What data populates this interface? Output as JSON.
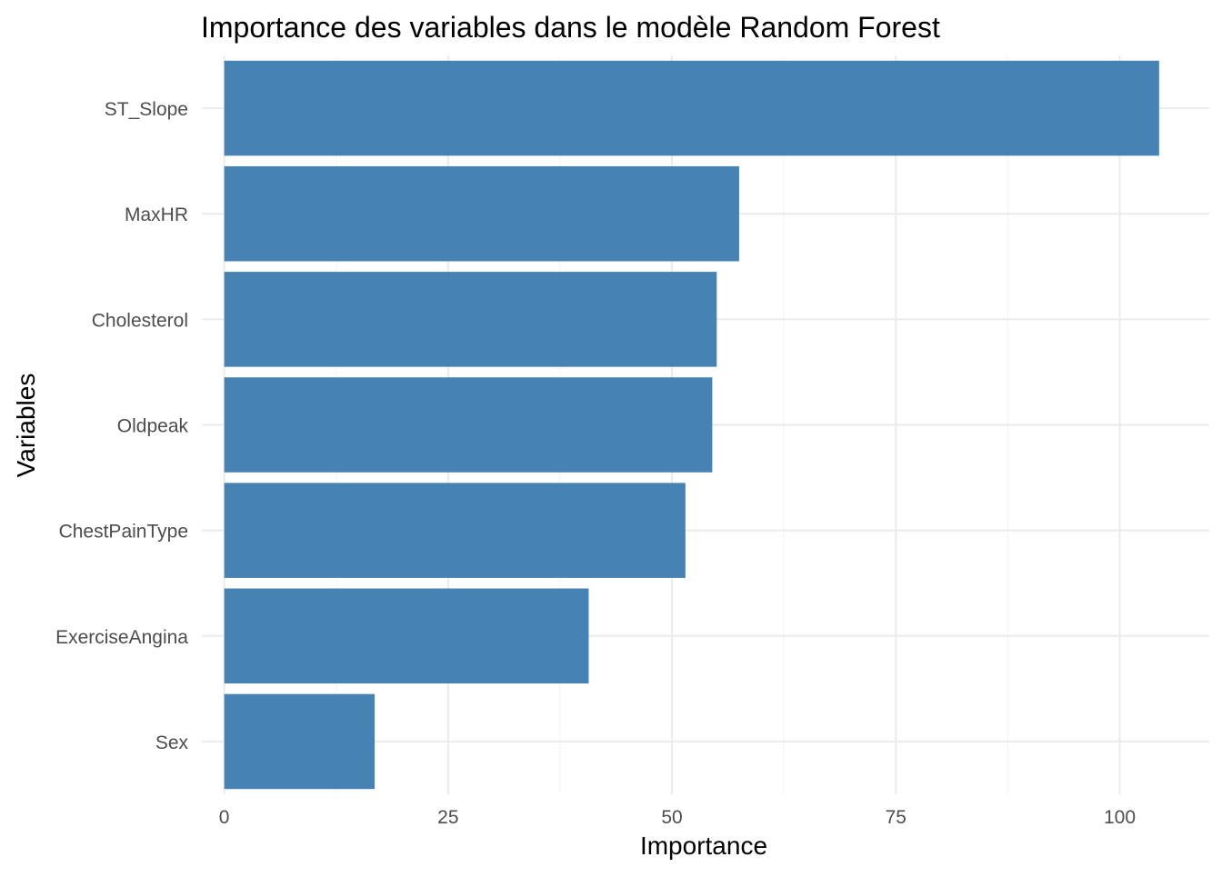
{
  "chart_data": {
    "type": "bar",
    "orientation": "horizontal",
    "title": "Importance des variables dans le modèle Random Forest",
    "xlabel": "Importance",
    "ylabel": "Variables",
    "categories": [
      "ST_Slope",
      "MaxHR",
      "Cholesterol",
      "Oldpeak",
      "ChestPainType",
      "ExerciseAngina",
      "Sex"
    ],
    "values": [
      104.4,
      57.5,
      55.0,
      54.5,
      51.5,
      40.7,
      16.8
    ],
    "xlim": [
      -2.5,
      110
    ],
    "x_ticks": [
      0,
      25,
      50,
      75,
      100
    ],
    "x_minor_ticks": [
      12.5,
      37.5,
      62.5,
      87.5
    ],
    "grid": true,
    "legend": "none",
    "bar_color": "#4682B4",
    "grid_color": "#EBEBEB"
  }
}
